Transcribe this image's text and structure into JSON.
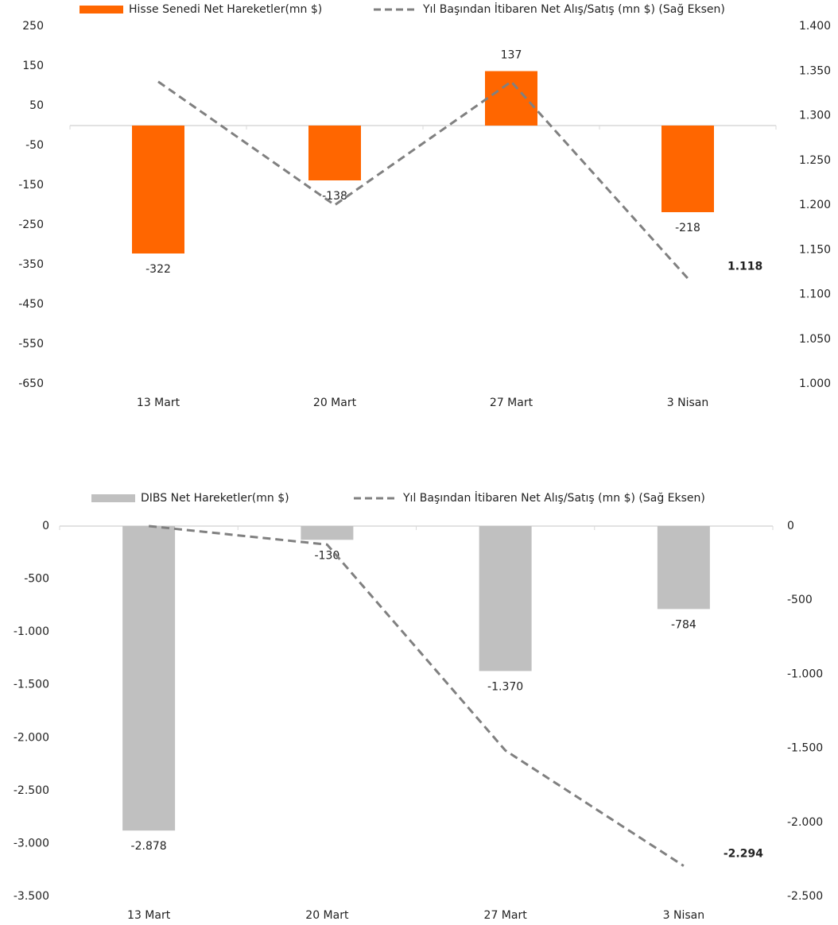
{
  "chart_data": [
    {
      "type": "bar",
      "categories": [
        "13 Mart",
        "20 Mart",
        "27 Mart",
        "3 Nisan"
      ],
      "series": [
        {
          "name": "Hisse Senedi Net Hareketler(mn $)",
          "color": "#ff6600",
          "values": [
            -322,
            -138,
            137,
            -218
          ]
        },
        {
          "name": "Yıl Başından İtibaren Net Alış/Satış (mn $) (Sağ Eksen)",
          "color": "#808080",
          "type": "line",
          "dashed": true,
          "axis": "y2",
          "values": [
            1338,
            1200,
            1338,
            1118
          ],
          "value_labels": [
            null,
            null,
            null,
            "1.118"
          ]
        }
      ],
      "ylim": [
        -650,
        250
      ],
      "yticks": [
        250,
        150,
        50,
        -50,
        -150,
        -250,
        -350,
        -450,
        -550,
        -650
      ],
      "y2lim": [
        1000,
        1400
      ],
      "y2ticks": [
        {
          "value": 1400,
          "label": "1.400"
        },
        {
          "value": 1350,
          "label": "1.350"
        },
        {
          "value": 1300,
          "label": "1.300"
        },
        {
          "value": 1250,
          "label": "1.250"
        },
        {
          "value": 1200,
          "label": "1.200"
        },
        {
          "value": 1150,
          "label": "1.150"
        },
        {
          "value": 1100,
          "label": "1.100"
        },
        {
          "value": 1050,
          "label": "1.050"
        },
        {
          "value": 1000,
          "label": "1.000"
        }
      ]
    },
    {
      "type": "bar",
      "categories": [
        "13 Mart",
        "20 Mart",
        "27 Mart",
        "3 Nisan"
      ],
      "series": [
        {
          "name": "DIBS Net Hareketler(mn $)",
          "color": "#c0c0c0",
          "values": [
            -2878,
            -130,
            -1370,
            -784
          ],
          "value_labels": [
            "-2.878",
            "-130",
            "-1.370",
            "-784"
          ]
        },
        {
          "name": "Yıl Başından İtibaren Net Alış/Satış (mn $) (Sağ Eksen)",
          "color": "#808080",
          "type": "line",
          "dashed": true,
          "axis": "y2",
          "values": [
            0,
            -125,
            -1515,
            -2294
          ],
          "value_labels": [
            null,
            null,
            null,
            "-2.294"
          ]
        }
      ],
      "ylim": [
        -3500,
        0
      ],
      "yticks": [
        0,
        -500,
        {
          "value": -1000,
          "label": "-1.000"
        },
        {
          "value": -1500,
          "label": "-1.500"
        },
        {
          "value": -2000,
          "label": "-2.000"
        },
        {
          "value": -2500,
          "label": "-2.500"
        },
        {
          "value": -3000,
          "label": "-3.000"
        },
        {
          "value": -3500,
          "label": "-3.500"
        }
      ],
      "y2lim": [
        -2500,
        0
      ],
      "y2ticks": [
        0,
        -500,
        {
          "value": -1000,
          "label": "-1.000"
        },
        {
          "value": -1500,
          "label": "-1.500"
        },
        {
          "value": -2000,
          "label": "-2.000"
        },
        {
          "value": -2500,
          "label": "-2.500"
        }
      ]
    }
  ]
}
